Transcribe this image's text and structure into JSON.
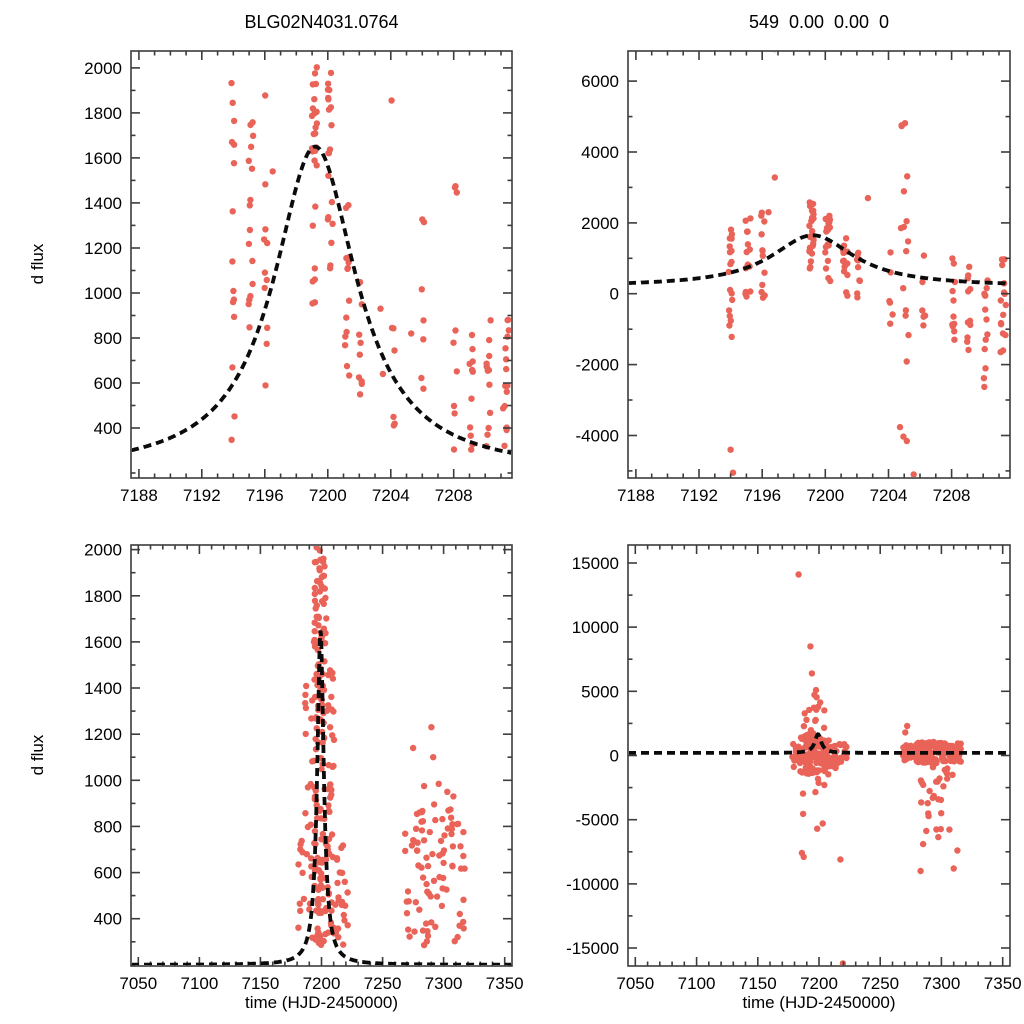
{
  "page": {
    "background": "#ffffff"
  },
  "chart_data": {
    "type": "scatter",
    "grid": false,
    "legend": null,
    "point_color": "#e96358",
    "curve_color": "#0b0b0b",
    "frame_color": "#3c3c3c",
    "xlabel": "time (HJD-2450000)",
    "ylabel": "d flux",
    "model": {
      "type": "paczynski-lorentzian",
      "t0": 7199.2,
      "gamma": 3.2,
      "base": 200,
      "amp": 1450,
      "peak_flux": 1650,
      "style": "dashed"
    },
    "panels": [
      {
        "id": "top-left",
        "title": "BLG02N4031.0764",
        "ylabel": "d flux",
        "xlabel": "",
        "xlim": [
          7187.5,
          7211.7
        ],
        "ylim": [
          178,
          2075
        ],
        "xticks": [
          7188,
          7192,
          7196,
          7200,
          7204,
          7208
        ],
        "yticks": [
          400,
          600,
          800,
          1000,
          1200,
          1400,
          1600,
          1800,
          2000
        ],
        "xminor": 1,
        "yminor": 100,
        "clusters": [
          [
            7194.0,
            0.12,
            330,
            2010,
            15
          ],
          [
            7195.1,
            0.16,
            620,
            1760,
            16
          ],
          [
            7196.05,
            0.12,
            520,
            1900,
            11
          ],
          [
            7199.15,
            0.16,
            950,
            2010,
            26
          ],
          [
            7200.15,
            0.16,
            1080,
            1980,
            20
          ],
          [
            7201.25,
            0.16,
            620,
            1500,
            14
          ],
          [
            7202.1,
            0.12,
            480,
            1310,
            9
          ],
          [
            7204.15,
            0.12,
            380,
            980,
            6
          ],
          [
            7206.0,
            0.12,
            480,
            1500,
            7
          ],
          [
            7208.1,
            0.12,
            300,
            1490,
            9
          ],
          [
            7209.1,
            0.12,
            290,
            950,
            11
          ],
          [
            7210.2,
            0.16,
            280,
            930,
            12
          ],
          [
            7211.3,
            0.2,
            280,
            910,
            15
          ]
        ],
        "points": [
          [
            7204.05,
            1855
          ],
          [
            7203.35,
            930
          ],
          [
            7203.5,
            640
          ],
          [
            7205.3,
            820
          ],
          [
            7196.5,
            1540
          ]
        ]
      },
      {
        "id": "top-right",
        "title": "549  0.00  0.00  0",
        "ylabel": "",
        "xlabel": "",
        "xlim": [
          7187.5,
          7211.7
        ],
        "ylim": [
          -5200,
          6850
        ],
        "xticks": [
          7188,
          7192,
          7196,
          7200,
          7204,
          7208
        ],
        "yticks": [
          -4000,
          -2000,
          0,
          2000,
          4000,
          6000
        ],
        "xminor": 1,
        "yminor": 1000,
        "clusters": [
          [
            7194.0,
            0.12,
            -1500,
            2300,
            18
          ],
          [
            7195.1,
            0.16,
            -600,
            2400,
            15
          ],
          [
            7196.05,
            0.12,
            -300,
            2500,
            12
          ],
          [
            7199.15,
            0.16,
            700,
            2600,
            24
          ],
          [
            7200.15,
            0.16,
            300,
            2300,
            18
          ],
          [
            7201.25,
            0.16,
            -200,
            1800,
            13
          ],
          [
            7202.1,
            0.12,
            -600,
            1500,
            10
          ],
          [
            7204.15,
            0.12,
            -1000,
            1200,
            6
          ],
          [
            7205.0,
            0.28,
            -4300,
            5400,
            18
          ],
          [
            7206.2,
            0.12,
            -900,
            1400,
            6
          ],
          [
            7208.1,
            0.12,
            -1300,
            1100,
            11
          ],
          [
            7209.1,
            0.12,
            -1600,
            900,
            11
          ],
          [
            7210.2,
            0.16,
            -2900,
            900,
            13
          ],
          [
            7211.3,
            0.2,
            -1900,
            1000,
            15
          ]
        ],
        "points": [
          [
            7196.8,
            6900
          ],
          [
            7196.8,
            3280
          ],
          [
            7196.4,
            2300
          ],
          [
            7194.0,
            -4400
          ],
          [
            7194.15,
            -5050
          ],
          [
            7205.6,
            -5100
          ],
          [
            7202.7,
            2700
          ]
        ]
      },
      {
        "id": "bottom-left",
        "title": "",
        "ylabel": "d flux",
        "xlabel": "time (HJD-2450000)",
        "xlim": [
          7044,
          7356
        ],
        "ylim": [
          195,
          2020
        ],
        "xticks": [
          7050,
          7100,
          7150,
          7200,
          7250,
          7300,
          7350
        ],
        "yticks": [
          400,
          600,
          800,
          1000,
          1200,
          1400,
          1600,
          1800,
          2000
        ],
        "xminor": 10,
        "yminor": 100,
        "clusters": [
          [
            7183.5,
            3.0,
            300,
            820,
            10
          ],
          [
            7189.5,
            3.2,
            300,
            1500,
            20
          ],
          [
            7198.8,
            5.2,
            280,
            2010,
            150
          ],
          [
            7207.5,
            3.0,
            300,
            1480,
            40
          ],
          [
            7216.5,
            5.5,
            280,
            720,
            22
          ],
          [
            7293.0,
            25.0,
            285,
            900,
            85
          ]
        ],
        "points": [
          [
            7275,
            1140
          ],
          [
            7290,
            1230
          ],
          [
            7291.5,
            1100
          ],
          [
            7296,
            985
          ],
          [
            7303,
            950
          ],
          [
            7284,
            975
          ],
          [
            7308,
            930
          ]
        ]
      },
      {
        "id": "bottom-right",
        "title": "",
        "ylabel": "",
        "xlabel": "time (HJD-2450000)",
        "xlim": [
          7044,
          7356
        ],
        "ylim": [
          -16400,
          16400
        ],
        "xticks": [
          7050,
          7100,
          7150,
          7200,
          7250,
          7300,
          7350
        ],
        "yticks": [
          -15000,
          -10000,
          -5000,
          0,
          5000,
          10000,
          15000
        ],
        "xminor": 10,
        "yminor": 2500,
        "clusters": [
          [
            7181.0,
            3.0,
            -900,
            900,
            12
          ],
          [
            7190.0,
            6.0,
            -1600,
            1600,
            55
          ],
          [
            7202.0,
            6.0,
            -1500,
            1500,
            55
          ],
          [
            7215.5,
            7.5,
            -1200,
            900,
            30
          ],
          [
            7195.5,
            9.0,
            -4800,
            4800,
            26
          ],
          [
            7196.0,
            2.2,
            2600,
            5200,
            6
          ],
          [
            7272.0,
            4.0,
            -400,
            800,
            18
          ],
          [
            7288.0,
            10.0,
            -600,
            1100,
            80
          ],
          [
            7306.0,
            10.0,
            -500,
            1000,
            70
          ],
          [
            7296.0,
            14.0,
            -3800,
            -800,
            22
          ],
          [
            7298.0,
            12.0,
            -6600,
            -4000,
            8
          ]
        ],
        "points": [
          [
            7183.0,
            16900
          ],
          [
            7183.3,
            14100
          ],
          [
            7193.0,
            8500
          ],
          [
            7194.2,
            6400
          ],
          [
            7186.0,
            -7600
          ],
          [
            7187.5,
            -7900
          ],
          [
            7198.5,
            -5700
          ],
          [
            7203.0,
            -5300
          ],
          [
            7217.5,
            -8100
          ],
          [
            7219.5,
            -16200
          ],
          [
            7272.0,
            2300
          ],
          [
            7270.5,
            1800
          ],
          [
            7283.0,
            -9000
          ],
          [
            7310.0,
            -8800
          ],
          [
            7313.0,
            -7400
          ],
          [
            7285.0,
            -6900
          ]
        ]
      }
    ]
  }
}
